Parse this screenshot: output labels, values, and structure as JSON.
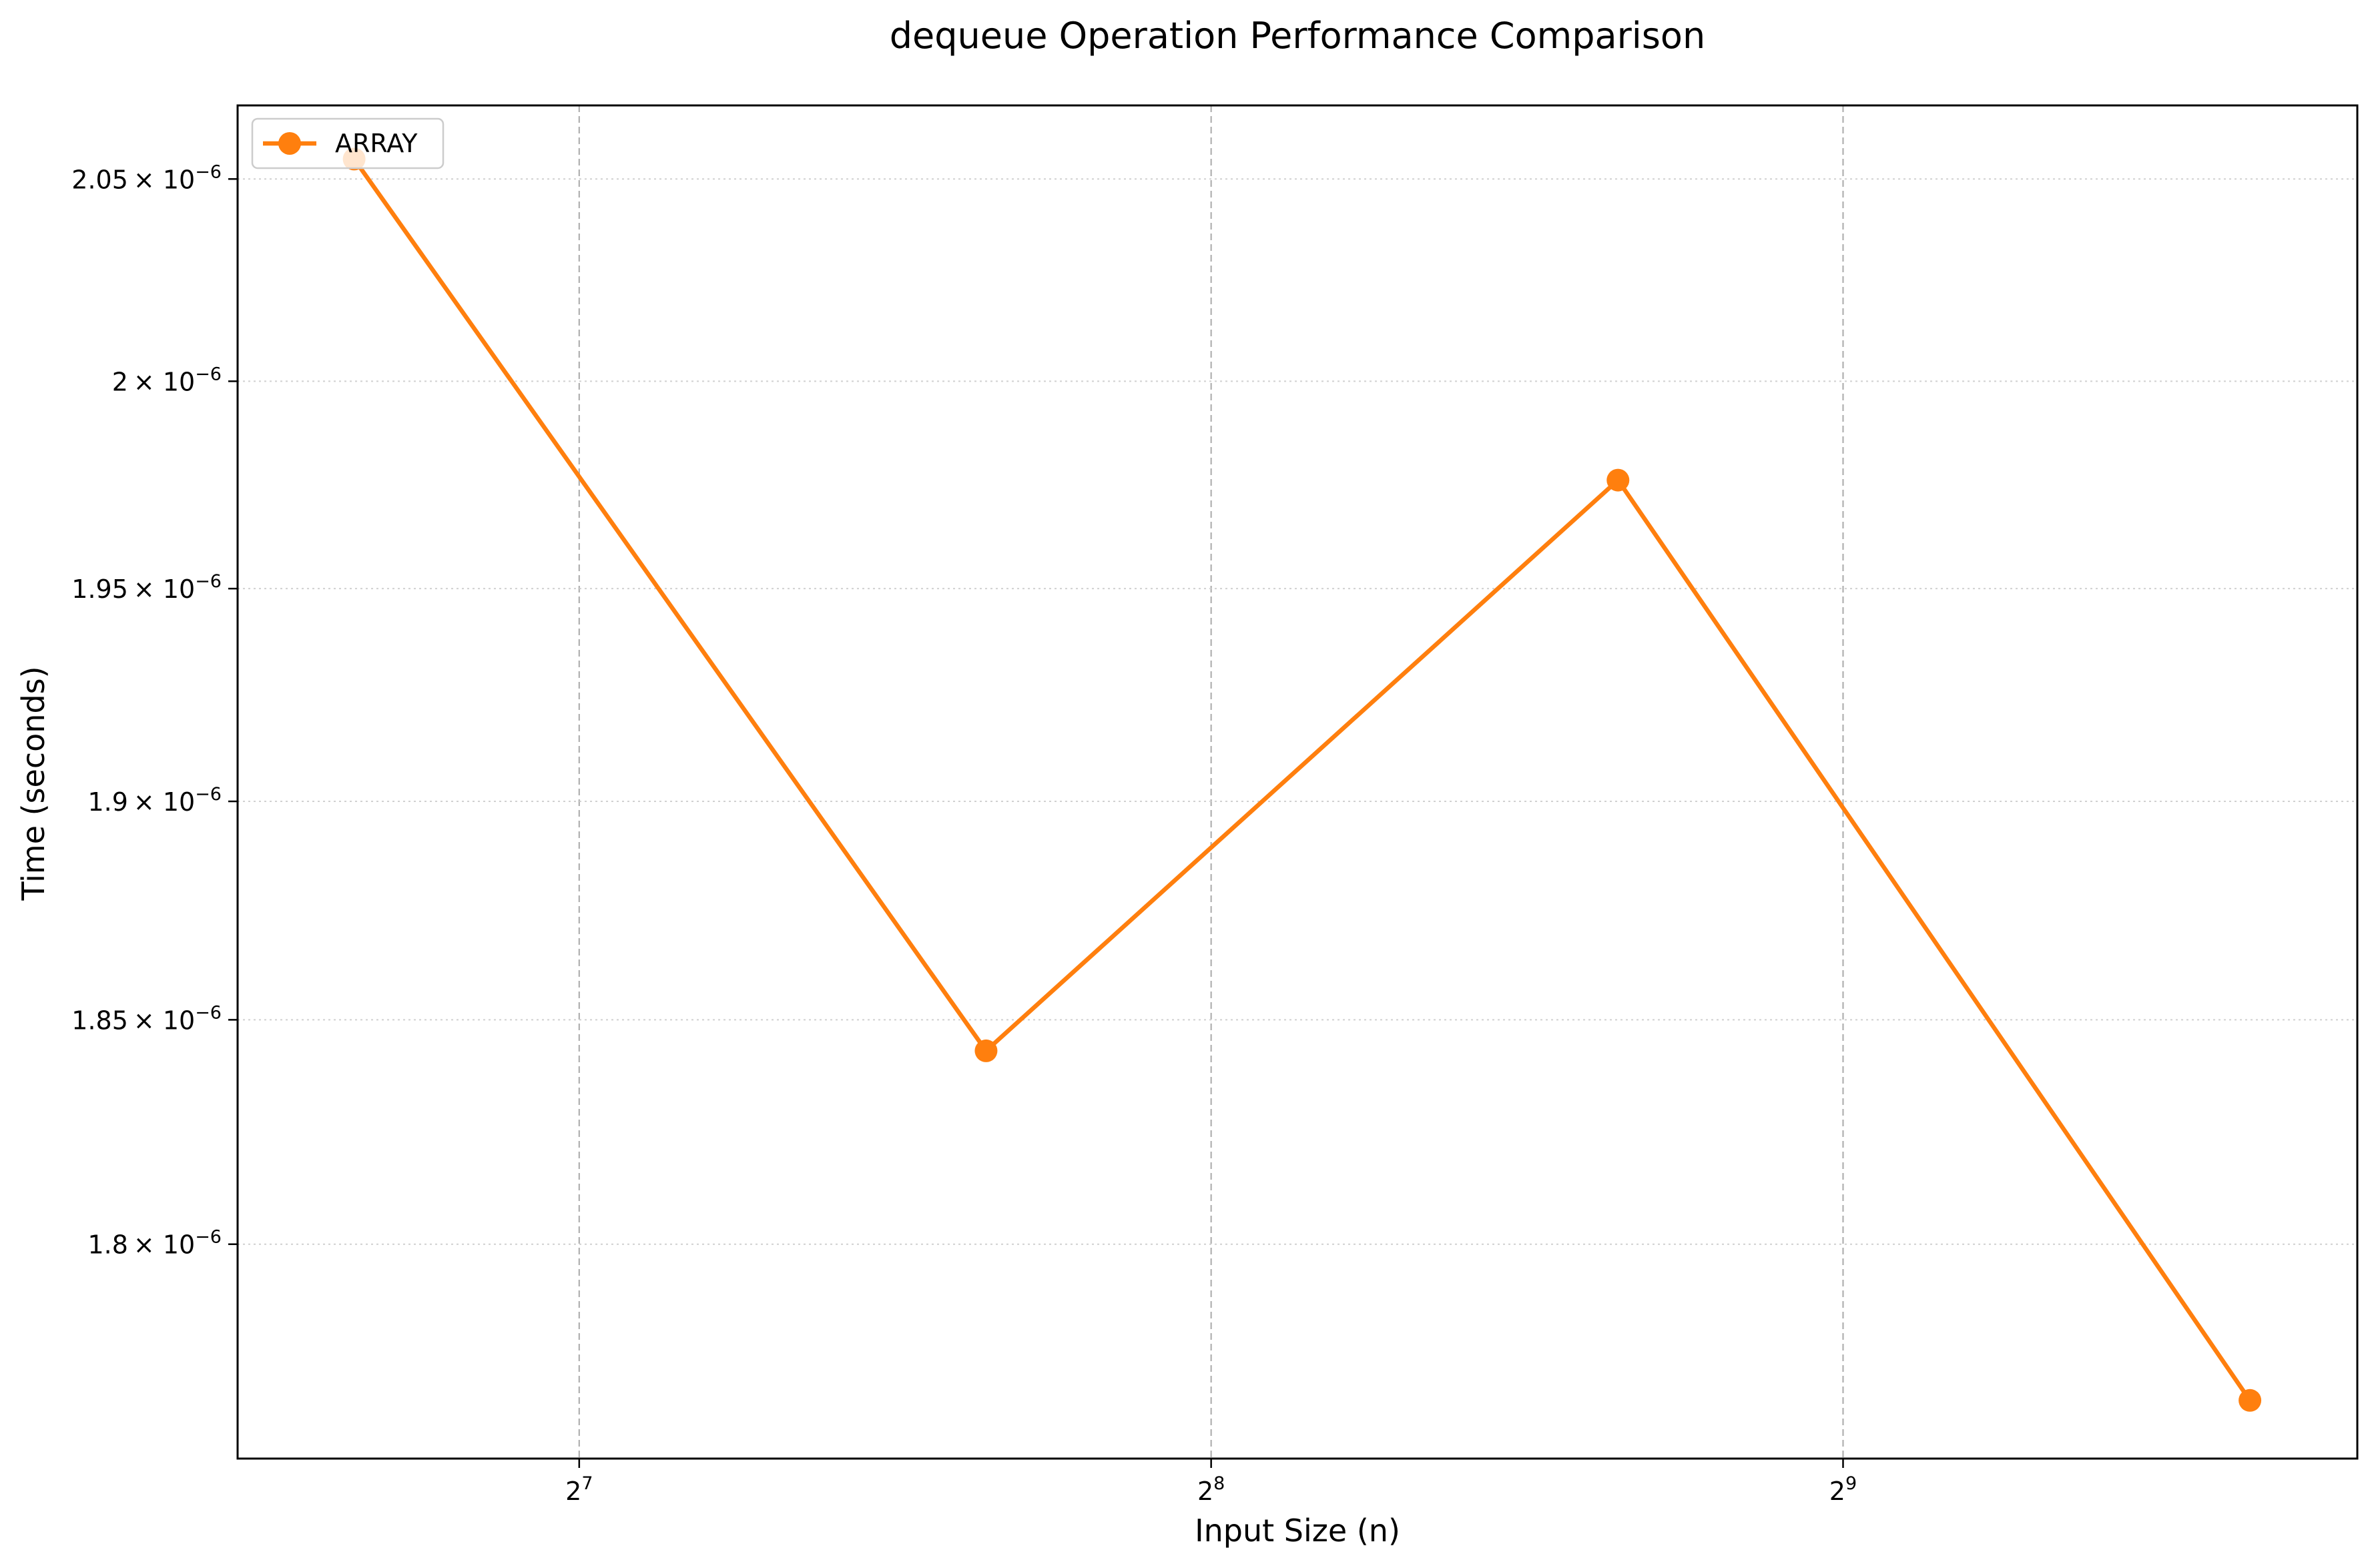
{
  "chart_data": {
    "type": "line",
    "title": "dequeue Operation Performance Comparison",
    "xlabel": "Input Size (n)",
    "ylabel": "Time (seconds)",
    "x_scale": "log2",
    "y_scale": "log",
    "xlim": [
      88,
      900
    ],
    "ylim": [
      1.7535e-06,
      2.0685e-06
    ],
    "x_ticks": [
      {
        "value": 128,
        "base": "2",
        "exp": "7"
      },
      {
        "value": 256,
        "base": "2",
        "exp": "8"
      },
      {
        "value": 512,
        "base": "2",
        "exp": "9"
      }
    ],
    "y_ticks": [
      {
        "value": 1.8e-06,
        "mantissa": "1.8",
        "base": "× 10",
        "exp": "−6"
      },
      {
        "value": 1.85e-06,
        "mantissa": "1.85",
        "base": "× 10",
        "exp": "−6"
      },
      {
        "value": 1.9e-06,
        "mantissa": "1.9",
        "base": "× 10",
        "exp": "−6"
      },
      {
        "value": 1.95e-06,
        "mantissa": "1.95",
        "base": "× 10",
        "exp": "−6"
      },
      {
        "value": 2e-06,
        "mantissa": "2",
        "base": "× 10",
        "exp": "−6"
      },
      {
        "value": 2.05e-06,
        "mantissa": "2.05",
        "base": "× 10",
        "exp": "−6"
      }
    ],
    "grid": true,
    "legend_position": "top-left",
    "series": [
      {
        "name": "ARRAY",
        "color": "#ff7f0e",
        "marker": "circle",
        "x": [
          100,
          200,
          400,
          800
        ],
        "y": [
          2.055e-06,
          1.843e-06,
          1.976e-06,
          1.766e-06
        ]
      }
    ]
  }
}
